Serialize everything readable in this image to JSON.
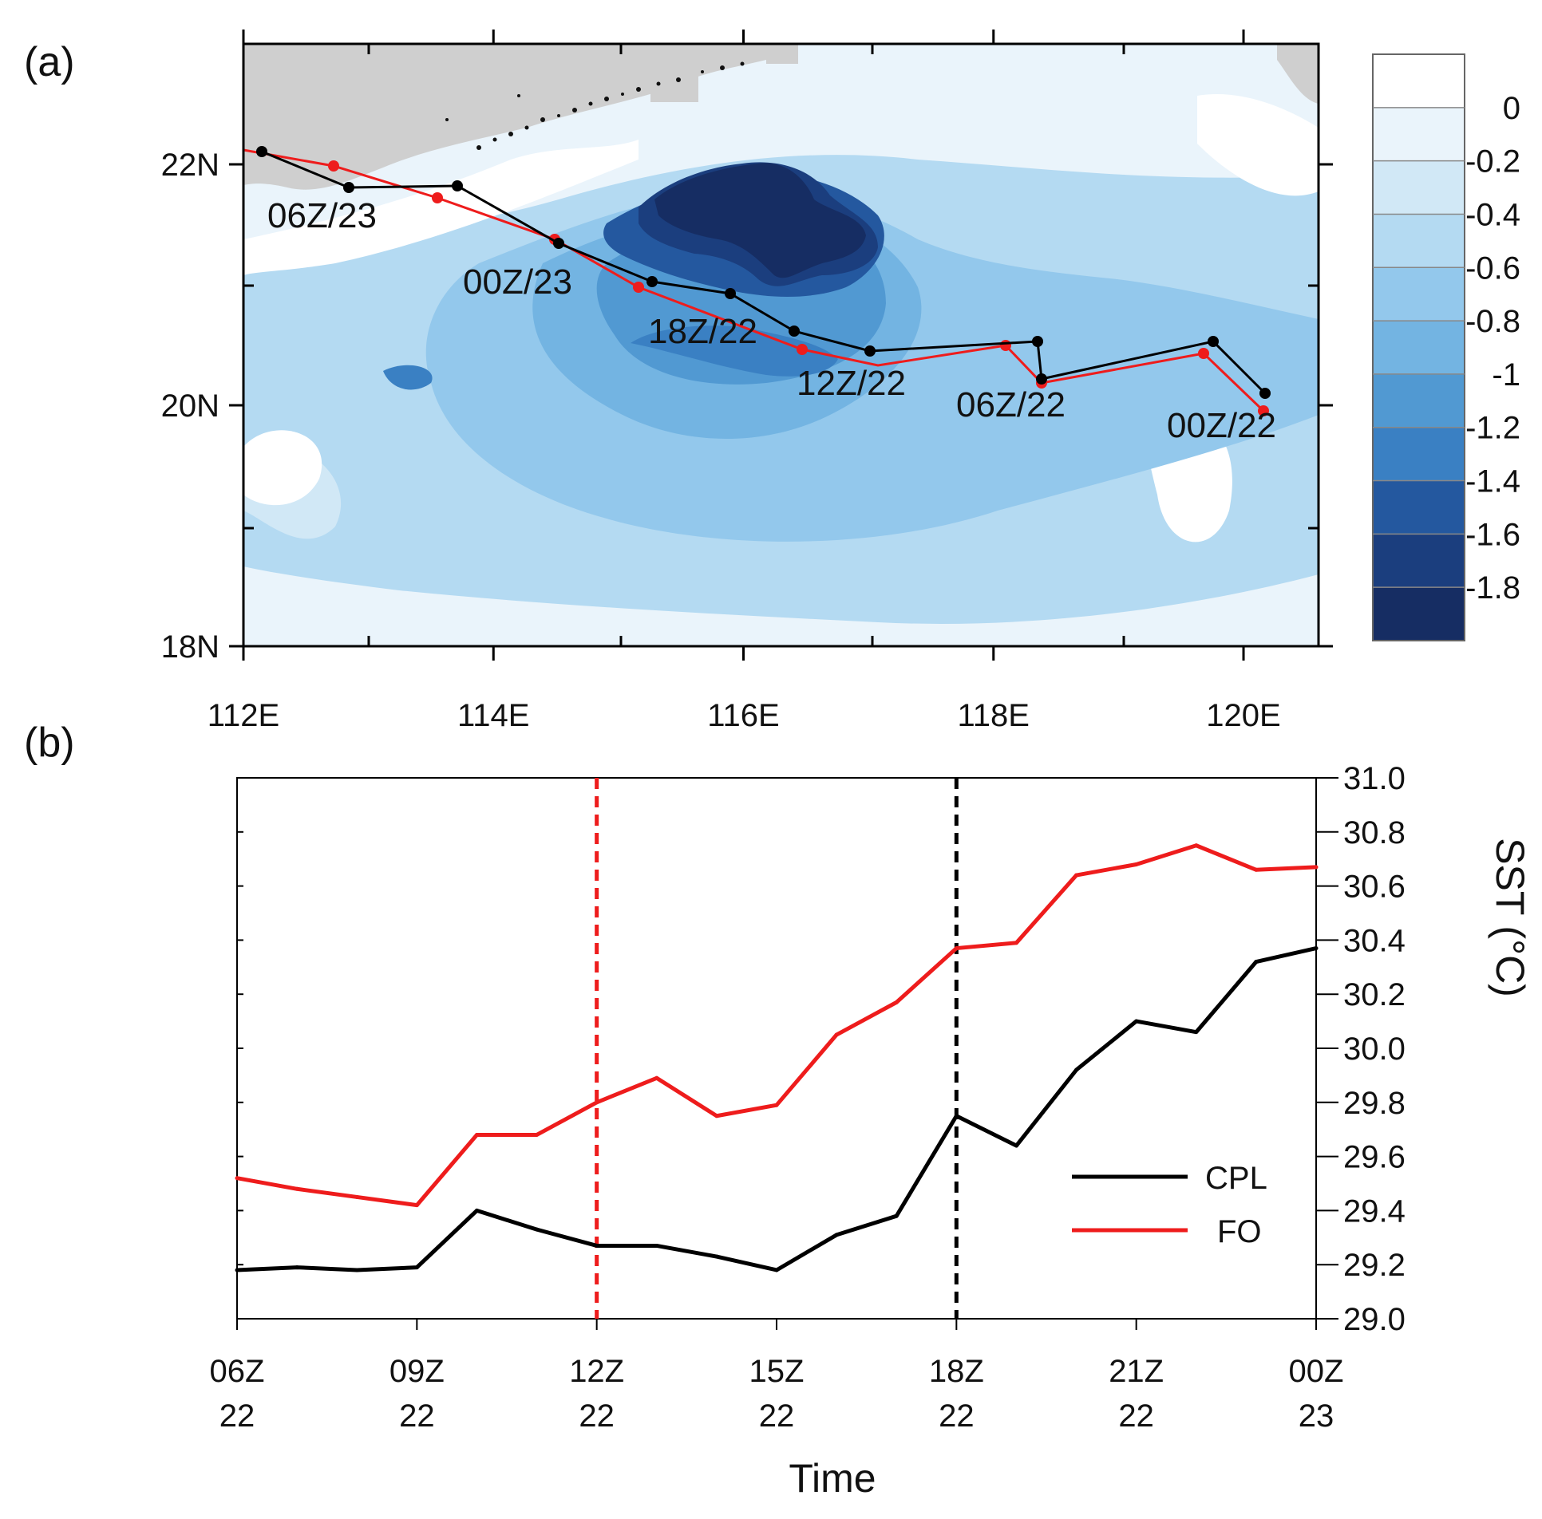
{
  "panel_a": {
    "label": "(a)",
    "lat_ticks": [
      {
        "value": 22,
        "label": "22N"
      },
      {
        "value": 20,
        "label": "20N"
      },
      {
        "value": 18,
        "label": "18N"
      }
    ],
    "lon_ticks": [
      {
        "value": 112,
        "label": "112E"
      },
      {
        "value": 114,
        "label": "114E"
      },
      {
        "value": 116,
        "label": "116E"
      },
      {
        "value": 118,
        "label": "118E"
      },
      {
        "value": 120,
        "label": "120E"
      }
    ],
    "colorbar": {
      "levels": [
        "0",
        "-0.2",
        "-0.4",
        "-0.6",
        "-0.8",
        "-1",
        "-1.2",
        "-1.4",
        "-1.6",
        "-1.8"
      ],
      "colors": [
        "#ffffff",
        "#eaf4fb",
        "#d1e8f6",
        "#b4daf2",
        "#93c8ec",
        "#73b4e2",
        "#5199d2",
        "#3a80c3",
        "#24589f",
        "#1b3e7e",
        "#162d63"
      ]
    },
    "track_labels": [
      "06Z/23",
      "00Z/23",
      "18Z/22",
      "12Z/22",
      "06Z/22",
      "00Z/22"
    ],
    "land_color": "#cfcfcf"
  },
  "chart_data": {
    "type": "line",
    "panel_label": "(b)",
    "title": "",
    "xlabel": "Time",
    "ylabel": "SST (°C)",
    "x": [
      0,
      1,
      2,
      3,
      4,
      5,
      6,
      7,
      8,
      9,
      10,
      11,
      12,
      13,
      14,
      15,
      16,
      17,
      18
    ],
    "x_ticks": [
      {
        "value": 0,
        "label": [
          "06Z",
          "22"
        ]
      },
      {
        "value": 3,
        "label": [
          "09Z",
          "22"
        ]
      },
      {
        "value": 6,
        "label": [
          "12Z",
          "22"
        ]
      },
      {
        "value": 9,
        "label": [
          "15Z",
          "22"
        ]
      },
      {
        "value": 12,
        "label": [
          "18Z",
          "22"
        ]
      },
      {
        "value": 15,
        "label": [
          "21Z",
          "22"
        ]
      },
      {
        "value": 18,
        "label": [
          "00Z",
          "23"
        ]
      }
    ],
    "ylim": [
      29.0,
      31.0
    ],
    "y_ticks": [
      "29.0",
      "29.2",
      "29.4",
      "29.6",
      "29.8",
      "30.0",
      "30.2",
      "30.4",
      "30.6",
      "30.8",
      "31.0"
    ],
    "series": [
      {
        "name": "CPL",
        "color": "#000000",
        "values": [
          29.18,
          29.19,
          29.18,
          29.19,
          29.4,
          29.33,
          29.27,
          29.27,
          29.23,
          29.18,
          29.31,
          29.38,
          29.75,
          29.64,
          29.92,
          30.1,
          30.06,
          30.32,
          30.37
        ]
      },
      {
        "name": "FO",
        "color": "#ee1c1c",
        "values": [
          29.52,
          29.48,
          29.45,
          29.42,
          29.68,
          29.68,
          29.8,
          29.89,
          29.75,
          29.79,
          30.05,
          30.17,
          30.37,
          30.39,
          30.64,
          30.68,
          30.75,
          30.66,
          30.67
        ]
      }
    ],
    "vlines": [
      {
        "x": 6,
        "color": "#ee1c1c",
        "style": "dashed"
      },
      {
        "x": 12,
        "color": "#000000",
        "style": "dashed"
      }
    ],
    "legend": "bottom-right"
  }
}
